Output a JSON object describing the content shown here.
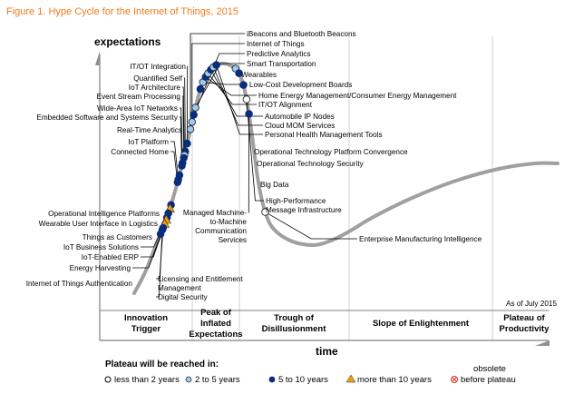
{
  "chart_data": {
    "type": "line",
    "title": "Figure 1. Hype Cycle for the Internet of Things, 2015",
    "ylabel": "expectations",
    "xlabel": "time",
    "as_of": "As of July 2015",
    "phases": [
      {
        "label": [
          "Innovation",
          "Trigger"
        ]
      },
      {
        "label": [
          "Peak of",
          "Inflated",
          "Expectations"
        ]
      },
      {
        "label": [
          "Trough of",
          "Disillusionment"
        ]
      },
      {
        "label": [
          "Slope of Enlightenment"
        ]
      },
      {
        "label": [
          "Plateau of",
          "Productivity"
        ]
      }
    ],
    "legend": {
      "title": "Plateau will be reached in:",
      "items": [
        {
          "key": "lt2",
          "label": "less than 2 years",
          "marker": "open-circle",
          "color": "#ffffff"
        },
        {
          "key": "2to5",
          "label": "2 to 5 years",
          "marker": "circle",
          "color": "#9ecbf0"
        },
        {
          "key": "5to10",
          "label": "5 to 10 years",
          "marker": "circle",
          "color": "#0a2d7a"
        },
        {
          "key": "gt10",
          "label": "more than 10 years",
          "marker": "triangle",
          "color": "#f39c12"
        },
        {
          "key": "obsolete",
          "label": [
            "obsolete",
            "before plateau"
          ],
          "marker": "x-circle",
          "color": "#e0312a"
        }
      ]
    },
    "technologies": [
      {
        "name": "iBeacons and Bluetooth Beacons",
        "t": 0.236,
        "class": "2to5"
      },
      {
        "name": "Internet of Things",
        "t": 0.246,
        "class": "2to5"
      },
      {
        "name": "Predictive Analytics",
        "t": 0.256,
        "class": "5to10"
      },
      {
        "name": "Smart Transportation",
        "t": 0.266,
        "class": "2to5"
      },
      {
        "name": "Wearables",
        "t": 0.292,
        "class": "5to10"
      },
      {
        "name": "Low-Cost Development Boards",
        "t": 0.302,
        "class": "2to5"
      },
      {
        "name": "Home Energy Management/Consumer Energy Management",
        "t": 0.31,
        "class": "5to10"
      },
      {
        "name": "IT/OT Alignment",
        "t": 0.316,
        "class": "2to5"
      },
      {
        "name": "Automobile IP Nodes",
        "t": 0.322,
        "class": "5to10"
      },
      {
        "name": "Cloud MOM Services",
        "t": 0.327,
        "class": "2to5"
      },
      {
        "name": "Personal Health Management Tools",
        "t": 0.332,
        "class": "5to10"
      },
      {
        "name": "Operational Technology Platform Convergence",
        "t": 0.36,
        "class": "2to5"
      },
      {
        "name": "Operational Technology Security",
        "t": 0.368,
        "class": "5to10"
      },
      {
        "name": "Big Data",
        "t": 0.385,
        "class": "5to10"
      },
      {
        "name": "High-Performance Message Infrastructure",
        "t": 0.405,
        "class": "lt2"
      },
      {
        "name": "Managed Machine-to-Machine Communication Services",
        "t": 0.425,
        "class": "5to10"
      },
      {
        "name": "Enterprise Manufacturing Intelligence",
        "t": 0.56,
        "class": "lt2"
      },
      {
        "name": "IT/OT Integration",
        "t": 0.216,
        "class": "5to10"
      },
      {
        "name": "Quantified Self",
        "t": 0.205,
        "class": "5to10"
      },
      {
        "name": "IoT Architecture",
        "t": 0.2,
        "class": "2to5"
      },
      {
        "name": "Event Stream Processing",
        "t": 0.196,
        "class": "5to10"
      },
      {
        "name": "Wide-Area IoT Networks",
        "t": 0.189,
        "class": "5to10"
      },
      {
        "name": "Embedded Software and Systems Security",
        "t": 0.185,
        "class": "5to10"
      },
      {
        "name": "Real-Time Analytics",
        "t": 0.172,
        "class": "5to10"
      },
      {
        "name": "IoT Platform",
        "t": 0.166,
        "class": "5to10"
      },
      {
        "name": "Connected Home",
        "t": 0.162,
        "class": "5to10"
      },
      {
        "name": "Operational Intelligence Platforms",
        "t": 0.13,
        "class": "5to10"
      },
      {
        "name": "Wearable User Interface in Logistics",
        "t": 0.125,
        "class": "gt10"
      },
      {
        "name": "Things as Customers",
        "t": 0.118,
        "class": "5to10"
      },
      {
        "name": "IoT Business Solutions",
        "t": 0.112,
        "class": "5to10"
      },
      {
        "name": "IoT-Enabled ERP",
        "t": 0.109,
        "class": "gt10"
      },
      {
        "name": "Energy Harvesting",
        "t": 0.103,
        "class": "gt10"
      },
      {
        "name": "Licensing and Entitlement Management",
        "t": 0.097,
        "class": "5to10"
      },
      {
        "name": "Digital Security",
        "t": 0.094,
        "class": "5to10"
      },
      {
        "name": "Internet of Things Authentication",
        "t": 0.088,
        "class": "5to10"
      }
    ]
  }
}
